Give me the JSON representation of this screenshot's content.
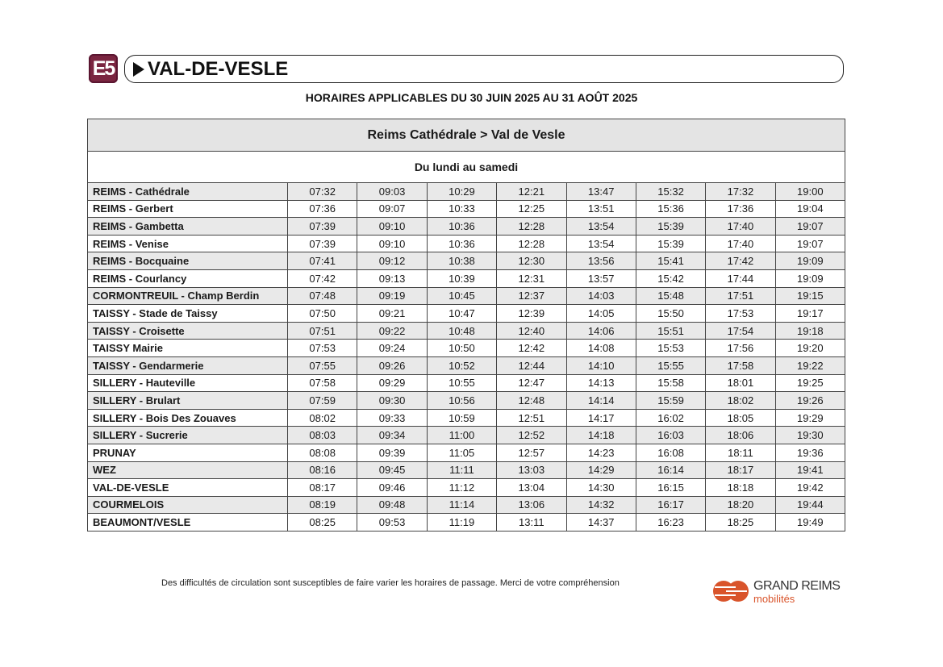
{
  "header": {
    "line_badge": "E5",
    "line_name": "VAL-DE-VESLE",
    "validity": "HORAIRES APPLICABLES DU 30 JUIN 2025 AU 31 AOÛT 2025"
  },
  "timetable": {
    "direction": "Reims Cathédrale > Val de Vesle",
    "days": "Du lundi au samedi",
    "rows": [
      {
        "stop": "REIMS - Cathédrale",
        "times": [
          "07:32",
          "09:03",
          "10:29",
          "12:21",
          "13:47",
          "15:32",
          "17:32",
          "19:00"
        ]
      },
      {
        "stop": "REIMS - Gerbert",
        "times": [
          "07:36",
          "09:07",
          "10:33",
          "12:25",
          "13:51",
          "15:36",
          "17:36",
          "19:04"
        ]
      },
      {
        "stop": "REIMS - Gambetta",
        "times": [
          "07:39",
          "09:10",
          "10:36",
          "12:28",
          "13:54",
          "15:39",
          "17:40",
          "19:07"
        ]
      },
      {
        "stop": "REIMS - Venise",
        "times": [
          "07:39",
          "09:10",
          "10:36",
          "12:28",
          "13:54",
          "15:39",
          "17:40",
          "19:07"
        ]
      },
      {
        "stop": "REIMS - Bocquaine",
        "times": [
          "07:41",
          "09:12",
          "10:38",
          "12:30",
          "13:56",
          "15:41",
          "17:42",
          "19:09"
        ]
      },
      {
        "stop": "REIMS - Courlancy",
        "times": [
          "07:42",
          "09:13",
          "10:39",
          "12:31",
          "13:57",
          "15:42",
          "17:44",
          "19:09"
        ]
      },
      {
        "stop": "CORMONTREUIL - Champ Berdin",
        "times": [
          "07:48",
          "09:19",
          "10:45",
          "12:37",
          "14:03",
          "15:48",
          "17:51",
          "19:15"
        ]
      },
      {
        "stop": "TAISSY - Stade de Taissy",
        "times": [
          "07:50",
          "09:21",
          "10:47",
          "12:39",
          "14:05",
          "15:50",
          "17:53",
          "19:17"
        ]
      },
      {
        "stop": "TAISSY - Croisette",
        "times": [
          "07:51",
          "09:22",
          "10:48",
          "12:40",
          "14:06",
          "15:51",
          "17:54",
          "19:18"
        ]
      },
      {
        "stop": "TAISSY Mairie",
        "times": [
          "07:53",
          "09:24",
          "10:50",
          "12:42",
          "14:08",
          "15:53",
          "17:56",
          "19:20"
        ]
      },
      {
        "stop": "TAISSY - Gendarmerie",
        "times": [
          "07:55",
          "09:26",
          "10:52",
          "12:44",
          "14:10",
          "15:55",
          "17:58",
          "19:22"
        ]
      },
      {
        "stop": "SILLERY - Hauteville",
        "times": [
          "07:58",
          "09:29",
          "10:55",
          "12:47",
          "14:13",
          "15:58",
          "18:01",
          "19:25"
        ]
      },
      {
        "stop": "SILLERY - Brulart",
        "times": [
          "07:59",
          "09:30",
          "10:56",
          "12:48",
          "14:14",
          "15:59",
          "18:02",
          "19:26"
        ]
      },
      {
        "stop": "SILLERY - Bois Des Zouaves",
        "times": [
          "08:02",
          "09:33",
          "10:59",
          "12:51",
          "14:17",
          "16:02",
          "18:05",
          "19:29"
        ]
      },
      {
        "stop": "SILLERY - Sucrerie",
        "times": [
          "08:03",
          "09:34",
          "11:00",
          "12:52",
          "14:18",
          "16:03",
          "18:06",
          "19:30"
        ]
      },
      {
        "stop": "PRUNAY",
        "times": [
          "08:08",
          "09:39",
          "11:05",
          "12:57",
          "14:23",
          "16:08",
          "18:11",
          "19:36"
        ]
      },
      {
        "stop": "WEZ",
        "times": [
          "08:16",
          "09:45",
          "11:11",
          "13:03",
          "14:29",
          "16:14",
          "18:17",
          "19:41"
        ]
      },
      {
        "stop": "VAL-DE-VESLE",
        "times": [
          "08:17",
          "09:46",
          "11:12",
          "13:04",
          "14:30",
          "16:15",
          "18:18",
          "19:42"
        ]
      },
      {
        "stop": "COURMELOIS",
        "times": [
          "08:19",
          "09:48",
          "11:14",
          "13:06",
          "14:32",
          "16:17",
          "18:20",
          "19:44"
        ]
      },
      {
        "stop": "BEAUMONT/VESLE",
        "times": [
          "08:25",
          "09:53",
          "11:19",
          "13:11",
          "14:37",
          "16:23",
          "18:25",
          "19:49"
        ]
      }
    ]
  },
  "footer": {
    "note": "Des difficultés de circulation sont susceptibles de faire varier les horaires de passage. Merci de votre compréhension",
    "logo_line1": "GRAND REIMS",
    "logo_line2": "mobilités"
  },
  "colors": {
    "badge": "#7a2540",
    "logo_orange": "#d9542b"
  }
}
